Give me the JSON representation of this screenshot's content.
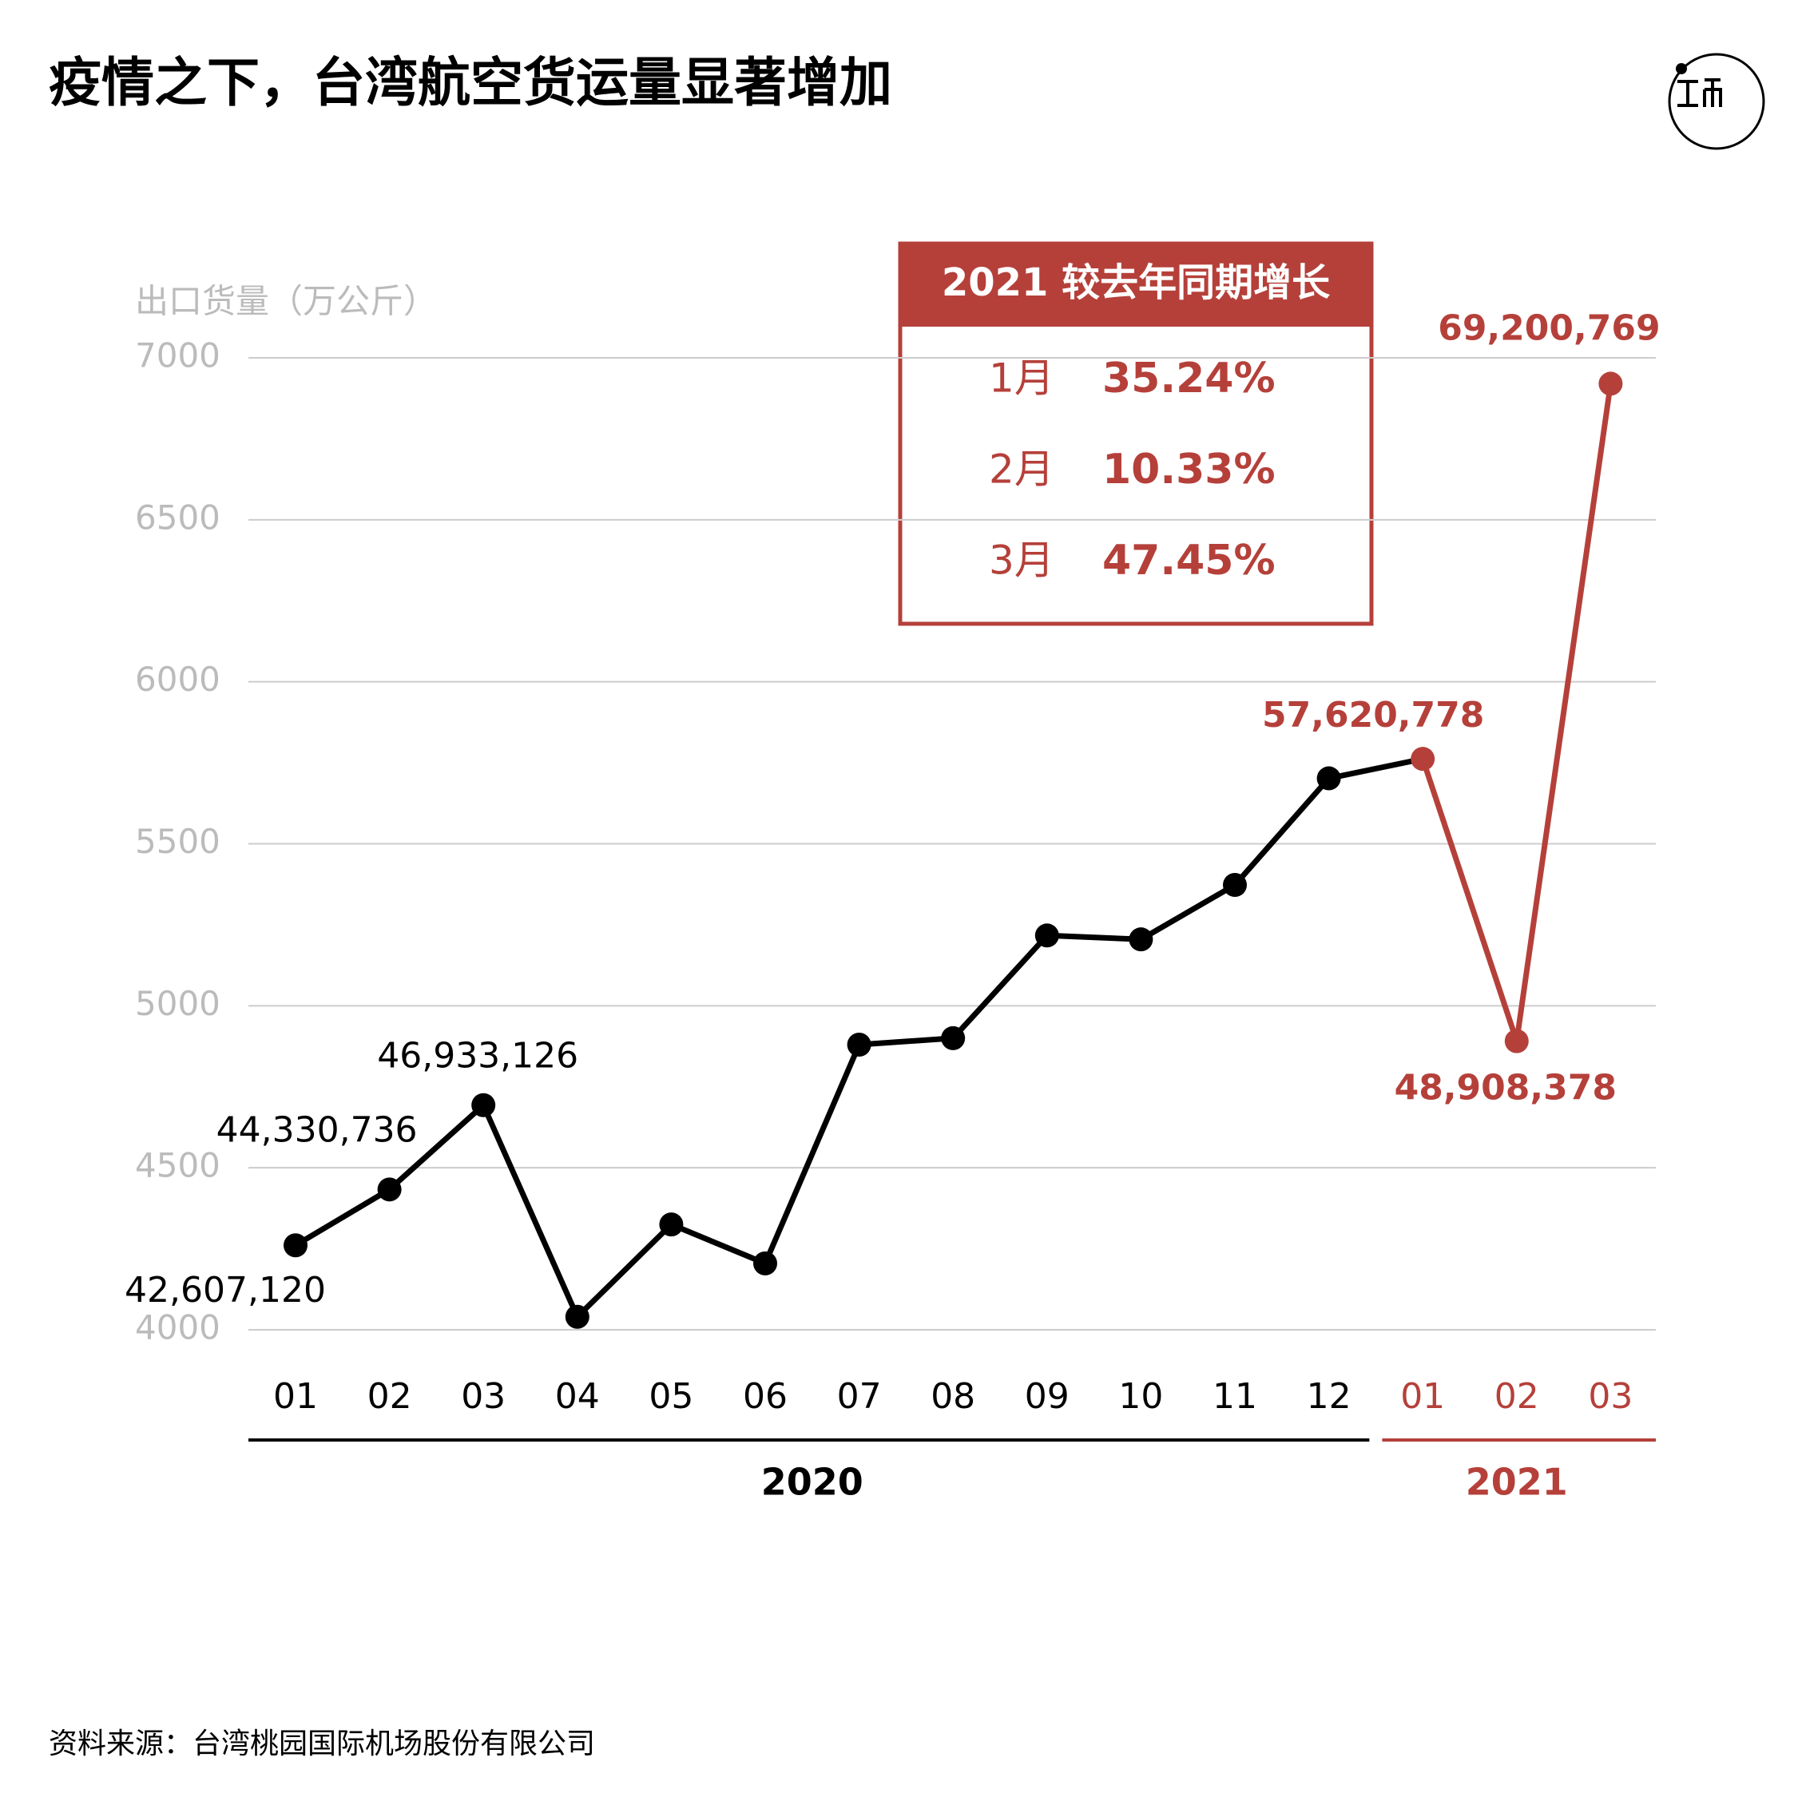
{
  "chart_data": {
    "type": "line",
    "title": "疫情之下，台湾航空货运量显著增加",
    "y_label": "出口货量（万公斤）",
    "source": "资料来源：台湾桃园国际机场股份有限公司",
    "categories": [
      "01",
      "02",
      "03",
      "04",
      "05",
      "06",
      "07",
      "08",
      "09",
      "10",
      "11",
      "12",
      "01",
      "02",
      "03"
    ],
    "series": [
      {
        "name": "2020",
        "color": "#000000",
        "values": [
          4260.712,
          4433.0736,
          4693.3126,
          4040,
          4325,
          4205,
          4880,
          4900,
          5217,
          5205,
          5373,
          5702,
          null,
          null,
          null
        ],
        "value_labels": [
          "42,607,120",
          "44,330,736",
          "46,933,126",
          null,
          null,
          null,
          null,
          null,
          null,
          null,
          null,
          null,
          null,
          null,
          null
        ]
      },
      {
        "name": "2021",
        "color": "#b5403a",
        "values": [
          null,
          null,
          null,
          null,
          null,
          null,
          null,
          null,
          null,
          null,
          null,
          null,
          5762.0778,
          4890.8378,
          6920.0769
        ],
        "value_labels": [
          null,
          null,
          null,
          null,
          null,
          null,
          null,
          null,
          null,
          null,
          null,
          null,
          "57,620,778",
          "48,908,378",
          "69,200,769"
        ]
      }
    ],
    "ylim": [
      4000,
      7000
    ],
    "yticks": [
      4000,
      4500,
      5000,
      5500,
      6000,
      6500,
      7000
    ],
    "grid": true,
    "inset": {
      "title": "2021 较去年同期增长",
      "rows": [
        {
          "month": "1月",
          "value": "35.24%"
        },
        {
          "month": "2月",
          "value": "10.33%"
        },
        {
          "month": "3月",
          "value": "47.45%"
        }
      ]
    }
  }
}
